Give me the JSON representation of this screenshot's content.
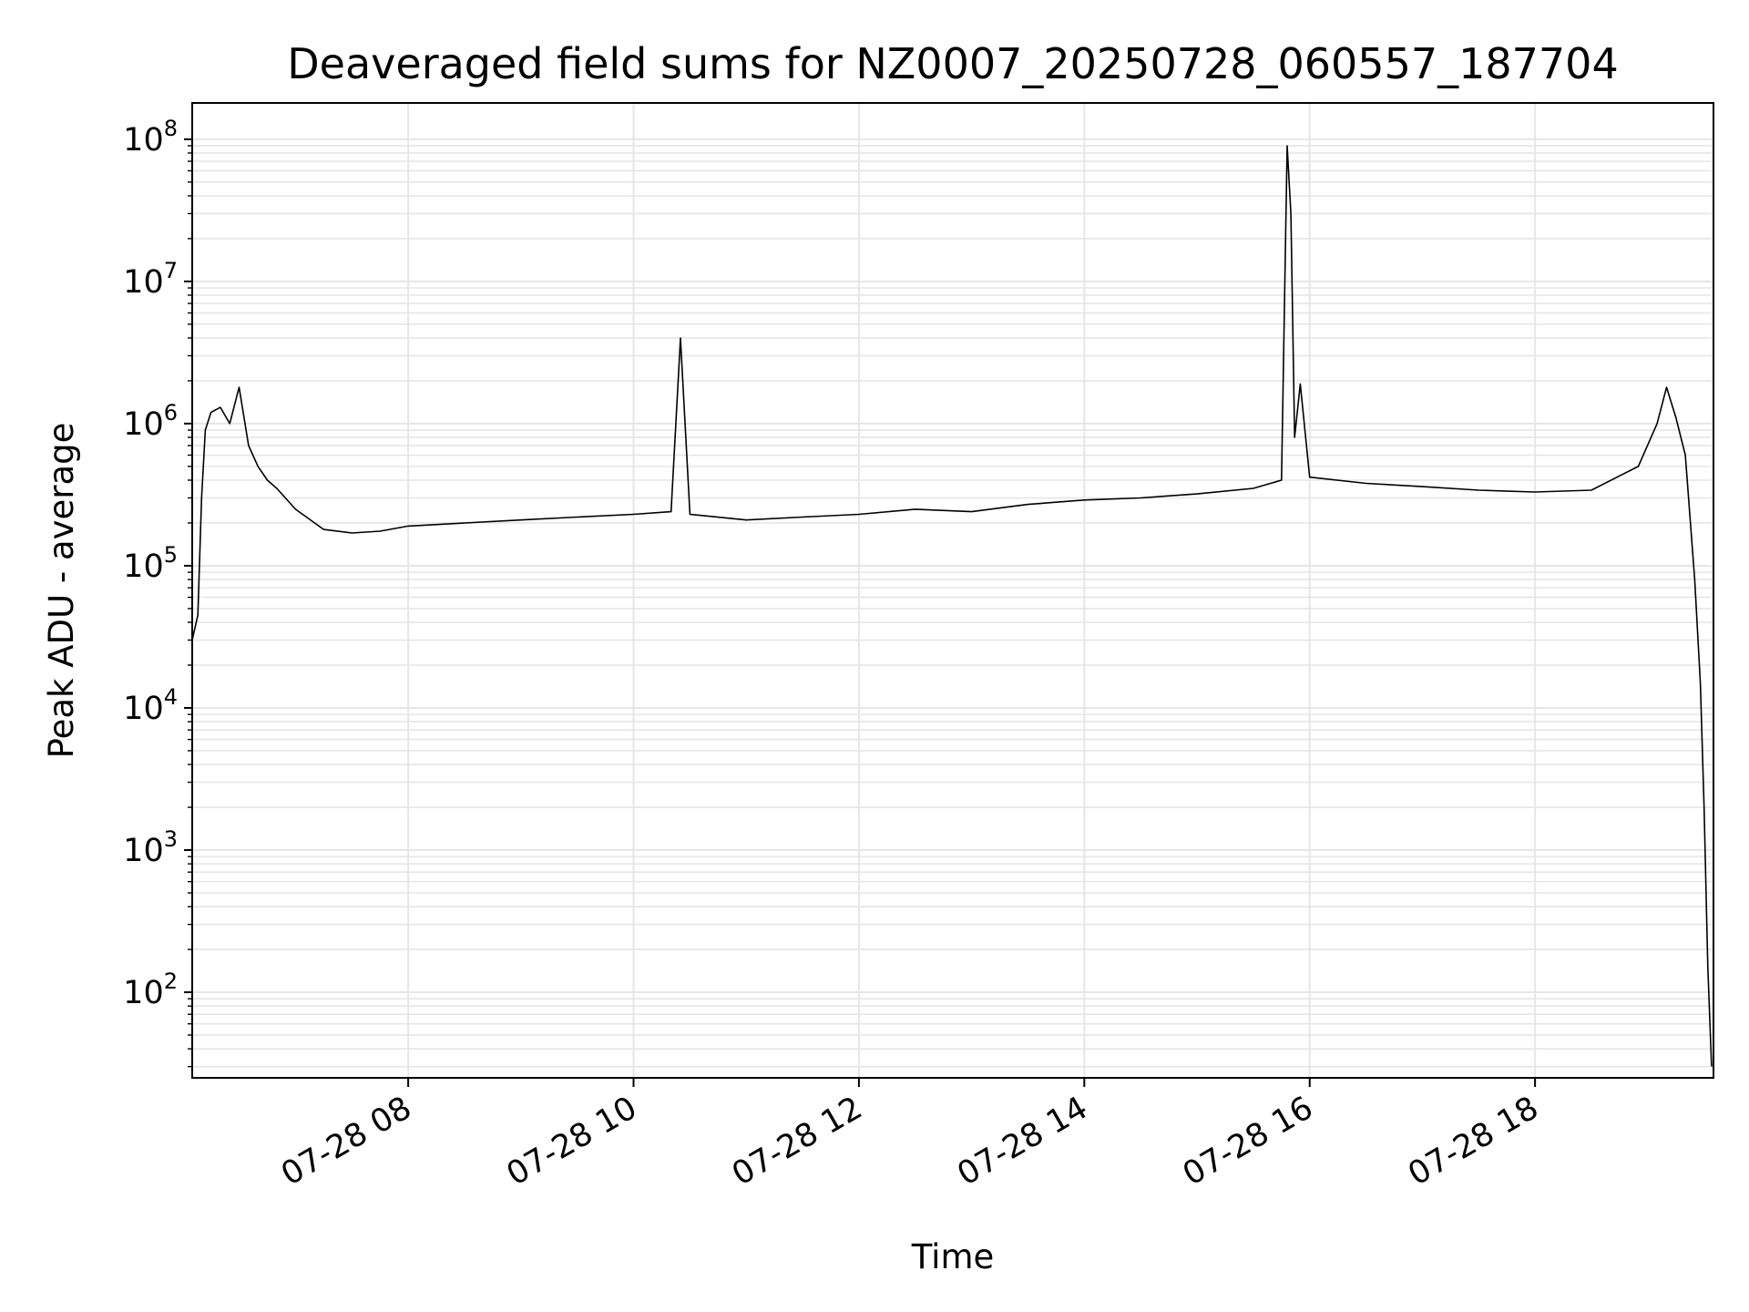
{
  "chart_data": {
    "type": "line",
    "title": "Deaveraged field sums for NZ0007_20250728_060557_187704",
    "xlabel": "Time",
    "ylabel": "Peak ADU - average",
    "yscale": "log",
    "grid": true,
    "line_color": "#000000",
    "grid_color": "#e6e6e6",
    "xlim": [
      "2025-07-28 06:05",
      "2025-07-28 19:35"
    ],
    "ylim": [
      25,
      180000000
    ],
    "xticks": [
      {
        "value": "2025-07-28 08:00",
        "label": "07-28 08"
      },
      {
        "value": "2025-07-28 10:00",
        "label": "07-28 10"
      },
      {
        "value": "2025-07-28 12:00",
        "label": "07-28 12"
      },
      {
        "value": "2025-07-28 14:00",
        "label": "07-28 14"
      },
      {
        "value": "2025-07-28 16:00",
        "label": "07-28 16"
      },
      {
        "value": "2025-07-28 18:00",
        "label": "07-28 18"
      }
    ],
    "yticks": [
      {
        "value": 100,
        "base": "10",
        "exp": "2"
      },
      {
        "value": 1000,
        "base": "10",
        "exp": "3"
      },
      {
        "value": 10000,
        "base": "10",
        "exp": "4"
      },
      {
        "value": 100000,
        "base": "10",
        "exp": "5"
      },
      {
        "value": 1000000,
        "base": "10",
        "exp": "6"
      },
      {
        "value": 10000000,
        "base": "10",
        "exp": "7"
      },
      {
        "value": 100000000,
        "base": "10",
        "exp": "8"
      }
    ],
    "series": [
      {
        "x": [
          "2025-07-28 06:05",
          "2025-07-28 06:08",
          "2025-07-28 06:10",
          "2025-07-28 06:12",
          "2025-07-28 06:15",
          "2025-07-28 06:20",
          "2025-07-28 06:25",
          "2025-07-28 06:30",
          "2025-07-28 06:35",
          "2025-07-28 06:40",
          "2025-07-28 06:45",
          "2025-07-28 06:50",
          "2025-07-28 07:00",
          "2025-07-28 07:15",
          "2025-07-28 07:30",
          "2025-07-28 07:45",
          "2025-07-28 08:00",
          "2025-07-28 08:30",
          "2025-07-28 09:00",
          "2025-07-28 09:30",
          "2025-07-28 10:00",
          "2025-07-28 10:20",
          "2025-07-28 10:25",
          "2025-07-28 10:30",
          "2025-07-28 11:00",
          "2025-07-28 11:30",
          "2025-07-28 12:00",
          "2025-07-28 12:30",
          "2025-07-28 13:00",
          "2025-07-28 13:30",
          "2025-07-28 14:00",
          "2025-07-28 14:30",
          "2025-07-28 15:00",
          "2025-07-28 15:30",
          "2025-07-28 15:45",
          "2025-07-28 15:48",
          "2025-07-28 15:50",
          "2025-07-28 15:52",
          "2025-07-28 15:55",
          "2025-07-28 16:00",
          "2025-07-28 16:30",
          "2025-07-28 17:00",
          "2025-07-28 17:30",
          "2025-07-28 18:00",
          "2025-07-28 18:30",
          "2025-07-28 18:55",
          "2025-07-28 19:05",
          "2025-07-28 19:10",
          "2025-07-28 19:15",
          "2025-07-28 19:20",
          "2025-07-28 19:25",
          "2025-07-28 19:28",
          "2025-07-28 19:30",
          "2025-07-28 19:32",
          "2025-07-28 19:34"
        ],
        "y": [
          30000,
          45000,
          300000,
          900000,
          1200000,
          1300000,
          1000000,
          1800000,
          700000,
          500000,
          400000,
          350000,
          250000,
          180000,
          170000,
          175000,
          190000,
          200000,
          210000,
          220000,
          230000,
          240000,
          4000000,
          230000,
          210000,
          220000,
          230000,
          250000,
          240000,
          270000,
          290000,
          300000,
          320000,
          350000,
          400000,
          90000000,
          30000000,
          800000,
          1900000,
          420000,
          380000,
          360000,
          340000,
          330000,
          340000,
          500000,
          1000000,
          1800000,
          1100000,
          600000,
          80000,
          15000,
          2000,
          150,
          30
        ]
      }
    ]
  }
}
